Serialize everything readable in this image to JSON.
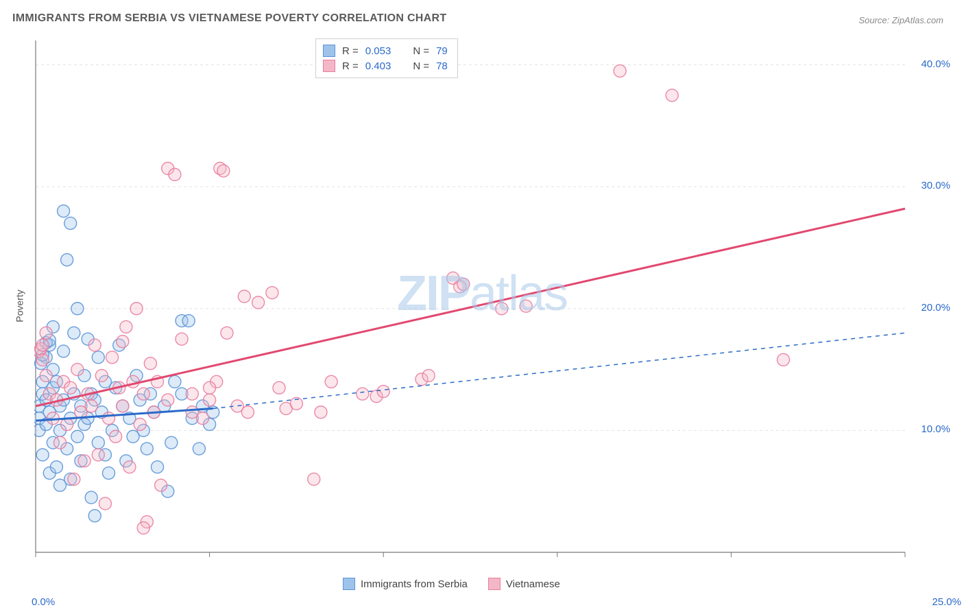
{
  "title": "IMMIGRANTS FROM SERBIA VS VIETNAMESE POVERTY CORRELATION CHART",
  "source": "Source: ZipAtlas.com",
  "watermark_bold": "ZIP",
  "watermark_light": "atlas",
  "ylabel": "Poverty",
  "chart": {
    "type": "scatter-with-regression",
    "background_color": "#ffffff",
    "grid_color": "#e3e3e3",
    "grid_dash": "4 4",
    "axis_color": "#787878",
    "xlim": [
      0,
      25
    ],
    "ylim": [
      0,
      42
    ],
    "x_ticks": [
      0,
      5,
      10,
      15,
      20,
      25
    ],
    "x_tick_labels": [
      "0.0%",
      "",
      "",
      "",
      "",
      "25.0%"
    ],
    "y_ticks": [
      10,
      20,
      30,
      40
    ],
    "y_tick_labels": [
      "10.0%",
      "20.0%",
      "30.0%",
      "40.0%"
    ],
    "marker_radius": 9,
    "marker_fill_opacity": 0.35,
    "marker_stroke_opacity": 0.9,
    "series": [
      {
        "name": "Immigrants from Serbia",
        "fill": "#9ec3eb",
        "stroke": "#5a94d6",
        "regression": {
          "x1": 0,
          "y1": 10.8,
          "x2": 5.1,
          "y2": 11.8,
          "dash_x1": 5.1,
          "dash_y1": 11.8,
          "dash_x2": 25,
          "dash_y2": 18.0,
          "solid_width": 3,
          "dash_pattern": "6 6",
          "dash_width": 1.5,
          "color": "#2a6ac9"
        },
        "points": [
          [
            0.1,
            11
          ],
          [
            0.1,
            12
          ],
          [
            0.1,
            10
          ],
          [
            0.2,
            13
          ],
          [
            0.2,
            8
          ],
          [
            0.2,
            14
          ],
          [
            0.3,
            12.5
          ],
          [
            0.3,
            10.5
          ],
          [
            0.3,
            16
          ],
          [
            0.4,
            17
          ],
          [
            0.4,
            6.5
          ],
          [
            0.4,
            11.5
          ],
          [
            0.5,
            9
          ],
          [
            0.5,
            13.5
          ],
          [
            0.5,
            15
          ],
          [
            0.6,
            14
          ],
          [
            0.6,
            7
          ],
          [
            0.7,
            10
          ],
          [
            0.7,
            12
          ],
          [
            0.7,
            5.5
          ],
          [
            0.8,
            16.5
          ],
          [
            0.8,
            28
          ],
          [
            0.8,
            12.5
          ],
          [
            0.9,
            24
          ],
          [
            0.9,
            8.5
          ],
          [
            1.0,
            27
          ],
          [
            1.0,
            11
          ],
          [
            1.0,
            6
          ],
          [
            1.1,
            18
          ],
          [
            1.1,
            13
          ],
          [
            1.2,
            20
          ],
          [
            1.2,
            9.5
          ],
          [
            1.3,
            12
          ],
          [
            1.3,
            7.5
          ],
          [
            1.4,
            10.5
          ],
          [
            1.4,
            14.5
          ],
          [
            1.5,
            11
          ],
          [
            1.5,
            17.5
          ],
          [
            1.6,
            13
          ],
          [
            1.6,
            4.5
          ],
          [
            1.7,
            3
          ],
          [
            1.7,
            12.5
          ],
          [
            1.8,
            16
          ],
          [
            1.8,
            9
          ],
          [
            1.9,
            11.5
          ],
          [
            2.0,
            8
          ],
          [
            2.0,
            14
          ],
          [
            2.1,
            6.5
          ],
          [
            2.2,
            10
          ],
          [
            2.3,
            13.5
          ],
          [
            2.4,
            17
          ],
          [
            2.5,
            12
          ],
          [
            2.6,
            7.5
          ],
          [
            2.7,
            11
          ],
          [
            2.8,
            9.5
          ],
          [
            2.9,
            14.5
          ],
          [
            3.0,
            12.5
          ],
          [
            3.1,
            10
          ],
          [
            3.2,
            8.5
          ],
          [
            3.3,
            13
          ],
          [
            3.4,
            11.5
          ],
          [
            3.5,
            7
          ],
          [
            3.7,
            12
          ],
          [
            3.8,
            5
          ],
          [
            3.9,
            9
          ],
          [
            4.0,
            14
          ],
          [
            4.2,
            19
          ],
          [
            4.2,
            13
          ],
          [
            4.4,
            19
          ],
          [
            4.5,
            11
          ],
          [
            4.7,
            8.5
          ],
          [
            4.8,
            12
          ],
          [
            5.0,
            10.5
          ],
          [
            5.1,
            11.5
          ],
          [
            0.3,
            17.2
          ],
          [
            0.4,
            17.4
          ],
          [
            0.15,
            15.5
          ],
          [
            0.2,
            16.2
          ],
          [
            0.5,
            18.5
          ]
        ]
      },
      {
        "name": "Vietnamese",
        "fill": "#f4b7c7",
        "stroke": "#e87d9e",
        "regression": {
          "x1": 0,
          "y1": 12.0,
          "x2": 25,
          "y2": 28.2,
          "solid_width": 3,
          "color": "#e2486f"
        },
        "points": [
          [
            0.1,
            16.5
          ],
          [
            0.15,
            16.7
          ],
          [
            0.2,
            15.8
          ],
          [
            0.2,
            17
          ],
          [
            0.3,
            14.5
          ],
          [
            0.3,
            18
          ],
          [
            0.4,
            13
          ],
          [
            0.5,
            11
          ],
          [
            0.6,
            12.5
          ],
          [
            0.7,
            9
          ],
          [
            0.8,
            14
          ],
          [
            0.9,
            10.5
          ],
          [
            1.0,
            13.5
          ],
          [
            1.1,
            6
          ],
          [
            1.2,
            15
          ],
          [
            1.3,
            11.5
          ],
          [
            1.4,
            7.5
          ],
          [
            1.5,
            13
          ],
          [
            1.6,
            12
          ],
          [
            1.7,
            17
          ],
          [
            1.8,
            8
          ],
          [
            1.9,
            14.5
          ],
          [
            2.0,
            4
          ],
          [
            2.1,
            11
          ],
          [
            2.2,
            16
          ],
          [
            2.3,
            9.5
          ],
          [
            2.4,
            13.5
          ],
          [
            2.5,
            12
          ],
          [
            2.6,
            18.5
          ],
          [
            2.7,
            7
          ],
          [
            2.8,
            14
          ],
          [
            2.9,
            20
          ],
          [
            3.0,
            10.5
          ],
          [
            3.1,
            13
          ],
          [
            3.2,
            2.5
          ],
          [
            3.3,
            15.5
          ],
          [
            3.4,
            11.5
          ],
          [
            3.5,
            14
          ],
          [
            3.6,
            5.5
          ],
          [
            3.8,
            12.5
          ],
          [
            3.8,
            31.5
          ],
          [
            4.0,
            31
          ],
          [
            4.2,
            17.5
          ],
          [
            4.5,
            13
          ],
          [
            4.8,
            11
          ],
          [
            5.0,
            12.5
          ],
          [
            5.2,
            14
          ],
          [
            5.3,
            31.5
          ],
          [
            5.4,
            31.3
          ],
          [
            5.5,
            18
          ],
          [
            5.8,
            12
          ],
          [
            6.0,
            21
          ],
          [
            6.1,
            11.5
          ],
          [
            6.4,
            20.5
          ],
          [
            6.8,
            21.3
          ],
          [
            7.0,
            13.5
          ],
          [
            7.2,
            11.8
          ],
          [
            7.5,
            12.2
          ],
          [
            8.0,
            6
          ],
          [
            8.2,
            11.5
          ],
          [
            8.5,
            14
          ],
          [
            9.4,
            13
          ],
          [
            9.8,
            12.8
          ],
          [
            10.0,
            13.2
          ],
          [
            11.1,
            14.2
          ],
          [
            11.3,
            14.5
          ],
          [
            12.0,
            22.5
          ],
          [
            12.2,
            21.8
          ],
          [
            12.3,
            22
          ],
          [
            13.4,
            20
          ],
          [
            14.1,
            20.2
          ],
          [
            16.8,
            39.5
          ],
          [
            18.3,
            37.5
          ],
          [
            21.5,
            15.8
          ],
          [
            3.1,
            2
          ],
          [
            4.5,
            11.5
          ],
          [
            5.0,
            13.5
          ],
          [
            2.5,
            17.3
          ]
        ]
      }
    ],
    "legend_top": [
      {
        "fill": "#9ec3eb",
        "stroke": "#5a94d6",
        "r_label": "R =",
        "r_value": "0.053",
        "n_label": "N =",
        "n_value": "79"
      },
      {
        "fill": "#f4b7c7",
        "stroke": "#e87d9e",
        "r_label": "R =",
        "r_value": "0.403",
        "n_label": "N =",
        "n_value": "78"
      }
    ],
    "legend_bottom": [
      {
        "fill": "#9ec3eb",
        "stroke": "#5a94d6",
        "label": "Immigrants from Serbia"
      },
      {
        "fill": "#f4b7c7",
        "stroke": "#e87d9e",
        "label": "Vietnamese"
      }
    ]
  }
}
